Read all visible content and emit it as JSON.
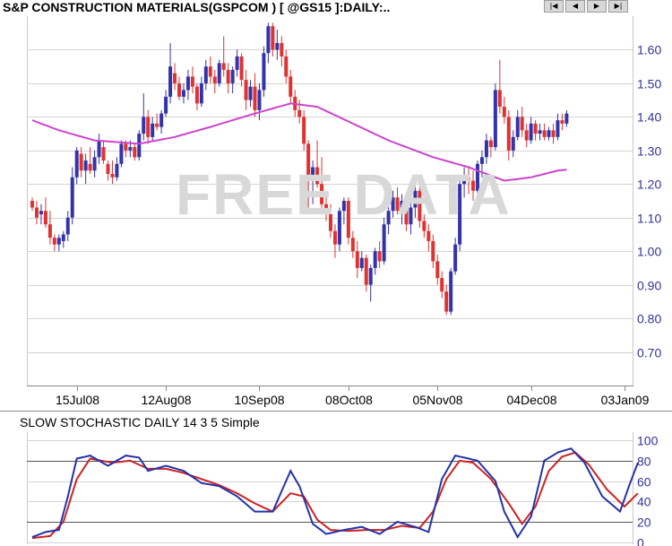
{
  "header": {
    "title": "S&P CONSTRUCTION MATERIALS(GSPCOM ) [ @GS15 ]:DAILY:..",
    "nav": [
      {
        "name": "nav-first-button",
        "glyph": "|◀"
      },
      {
        "name": "nav-prev-button",
        "glyph": "◀"
      },
      {
        "name": "nav-next-button",
        "glyph": "▶"
      },
      {
        "name": "nav-last-button",
        "glyph": "▶|"
      }
    ]
  },
  "watermark": "FREE DATA",
  "colors": {
    "up": "#3333aa",
    "down": "#dd3333",
    "ma": "#cc44cc",
    "stoch_k": "#2233aa",
    "stoch_d": "#cc2222",
    "axis_text": "#333399",
    "grid": "#555555"
  },
  "chart_data": [
    {
      "type": "candlestick",
      "title": "S&P CONSTRUCTION MATERIALS(GSPCOM ) [ @GS15 ]:DAILY:..",
      "ylim": [
        0.6,
        1.7
      ],
      "yticks": [
        "0.70",
        "0.80",
        "0.90",
        "1.00",
        "1.10",
        "1.20",
        "1.30",
        "1.40",
        "1.50",
        "1.60"
      ],
      "xticks": [
        {
          "label": "15Jul08",
          "index": 10
        },
        {
          "label": "12Aug08",
          "index": 30
        },
        {
          "label": "10Sep08",
          "index": 51
        },
        {
          "label": "08Oct08",
          "index": 71
        },
        {
          "label": "05Nov08",
          "index": 91
        },
        {
          "label": "04Dec08",
          "index": 112
        },
        {
          "label": "03Jan09",
          "index": 133
        }
      ],
      "ohlc": [
        [
          1.15,
          1.16,
          1.12,
          1.13
        ],
        [
          1.13,
          1.15,
          1.08,
          1.1
        ],
        [
          1.11,
          1.14,
          1.08,
          1.12
        ],
        [
          1.12,
          1.16,
          1.07,
          1.08
        ],
        [
          1.08,
          1.12,
          1.02,
          1.04
        ],
        [
          1.04,
          1.05,
          1.0,
          1.02
        ],
        [
          1.02,
          1.05,
          1.0,
          1.04
        ],
        [
          1.03,
          1.06,
          1.01,
          1.05
        ],
        [
          1.05,
          1.12,
          1.03,
          1.1
        ],
        [
          1.1,
          1.25,
          1.08,
          1.22
        ],
        [
          1.22,
          1.31,
          1.2,
          1.3
        ],
        [
          1.29,
          1.31,
          1.22,
          1.24
        ],
        [
          1.24,
          1.29,
          1.2,
          1.27
        ],
        [
          1.26,
          1.31,
          1.23,
          1.24
        ],
        [
          1.24,
          1.3,
          1.22,
          1.28
        ],
        [
          1.28,
          1.35,
          1.26,
          1.33
        ],
        [
          1.31,
          1.33,
          1.26,
          1.27
        ],
        [
          1.26,
          1.27,
          1.21,
          1.23
        ],
        [
          1.23,
          1.27,
          1.2,
          1.22
        ],
        [
          1.22,
          1.28,
          1.21,
          1.26
        ],
        [
          1.26,
          1.33,
          1.25,
          1.32
        ],
        [
          1.32,
          1.33,
          1.28,
          1.3
        ],
        [
          1.3,
          1.33,
          1.28,
          1.31
        ],
        [
          1.31,
          1.32,
          1.27,
          1.28
        ],
        [
          1.28,
          1.36,
          1.27,
          1.35
        ],
        [
          1.35,
          1.47,
          1.33,
          1.4
        ],
        [
          1.4,
          1.42,
          1.32,
          1.34
        ],
        [
          1.34,
          1.4,
          1.33,
          1.38
        ],
        [
          1.38,
          1.41,
          1.36,
          1.37
        ],
        [
          1.37,
          1.42,
          1.35,
          1.41
        ],
        [
          1.41,
          1.48,
          1.4,
          1.46
        ],
        [
          1.46,
          1.62,
          1.44,
          1.55
        ],
        [
          1.53,
          1.56,
          1.48,
          1.5
        ],
        [
          1.5,
          1.52,
          1.45,
          1.46
        ],
        [
          1.46,
          1.5,
          1.44,
          1.48
        ],
        [
          1.48,
          1.54,
          1.45,
          1.52
        ],
        [
          1.52,
          1.55,
          1.47,
          1.49
        ],
        [
          1.49,
          1.5,
          1.42,
          1.44
        ],
        [
          1.44,
          1.52,
          1.43,
          1.5
        ],
        [
          1.5,
          1.57,
          1.48,
          1.55
        ],
        [
          1.55,
          1.58,
          1.5,
          1.52
        ],
        [
          1.52,
          1.54,
          1.47,
          1.5
        ],
        [
          1.5,
          1.57,
          1.49,
          1.56
        ],
        [
          1.56,
          1.64,
          1.52,
          1.54
        ],
        [
          1.54,
          1.56,
          1.47,
          1.5
        ],
        [
          1.5,
          1.55,
          1.47,
          1.54
        ],
        [
          1.54,
          1.6,
          1.52,
          1.58
        ],
        [
          1.58,
          1.59,
          1.49,
          1.51
        ],
        [
          1.51,
          1.54,
          1.42,
          1.45
        ],
        [
          1.45,
          1.51,
          1.43,
          1.49
        ],
        [
          1.49,
          1.53,
          1.4,
          1.42
        ],
        [
          1.42,
          1.5,
          1.39,
          1.48
        ],
        [
          1.48,
          1.61,
          1.46,
          1.59
        ],
        [
          1.59,
          1.68,
          1.56,
          1.67
        ],
        [
          1.67,
          1.68,
          1.58,
          1.6
        ],
        [
          1.6,
          1.66,
          1.57,
          1.62
        ],
        [
          1.62,
          1.64,
          1.55,
          1.58
        ],
        [
          1.58,
          1.6,
          1.5,
          1.52
        ],
        [
          1.52,
          1.54,
          1.44,
          1.46
        ],
        [
          1.46,
          1.48,
          1.4,
          1.42
        ],
        [
          1.42,
          1.45,
          1.38,
          1.4
        ],
        [
          1.4,
          1.42,
          1.3,
          1.32
        ],
        [
          1.32,
          1.33,
          1.13,
          1.22
        ],
        [
          1.22,
          1.27,
          1.14,
          1.25
        ],
        [
          1.25,
          1.33,
          1.19,
          1.2
        ],
        [
          1.2,
          1.28,
          1.12,
          1.14
        ],
        [
          1.14,
          1.18,
          1.09,
          1.11
        ],
        [
          1.11,
          1.14,
          1.04,
          1.06
        ],
        [
          1.06,
          1.08,
          0.98,
          1.02
        ],
        [
          1.02,
          1.13,
          1.0,
          1.12
        ],
        [
          1.12,
          1.16,
          1.08,
          1.15
        ],
        [
          1.15,
          1.16,
          1.02,
          1.04
        ],
        [
          1.04,
          1.06,
          0.98,
          1.0
        ],
        [
          1.0,
          1.03,
          0.92,
          0.95
        ],
        [
          0.95,
          1.0,
          0.94,
          0.98
        ],
        [
          0.98,
          0.99,
          0.88,
          0.9
        ],
        [
          0.9,
          0.96,
          0.85,
          0.95
        ],
        [
          0.95,
          1.01,
          0.93,
          1.0
        ],
        [
          1.0,
          1.03,
          0.95,
          0.97
        ],
        [
          0.97,
          1.1,
          0.96,
          1.08
        ],
        [
          1.08,
          1.14,
          1.05,
          1.12
        ],
        [
          1.12,
          1.18,
          1.1,
          1.16
        ],
        [
          1.16,
          1.19,
          1.11,
          1.12
        ],
        [
          1.12,
          1.17,
          1.08,
          1.15
        ],
        [
          1.15,
          1.16,
          1.06,
          1.08
        ],
        [
          1.08,
          1.15,
          1.05,
          1.13
        ],
        [
          1.13,
          1.2,
          1.1,
          1.18
        ],
        [
          1.18,
          1.2,
          1.07,
          1.09
        ],
        [
          1.09,
          1.11,
          1.04,
          1.06
        ],
        [
          1.06,
          1.08,
          1.0,
          1.03
        ],
        [
          1.03,
          1.05,
          0.95,
          0.97
        ],
        [
          0.97,
          0.99,
          0.9,
          0.92
        ],
        [
          0.92,
          0.94,
          0.86,
          0.88
        ],
        [
          0.88,
          0.9,
          0.81,
          0.82
        ],
        [
          0.82,
          0.95,
          0.81,
          0.94
        ],
        [
          0.94,
          1.04,
          0.93,
          1.02
        ],
        [
          1.02,
          1.22,
          1.0,
          1.2
        ],
        [
          1.2,
          1.25,
          1.16,
          1.22
        ],
        [
          1.22,
          1.25,
          1.17,
          1.21
        ],
        [
          1.21,
          1.24,
          1.15,
          1.18
        ],
        [
          1.18,
          1.27,
          1.17,
          1.26
        ],
        [
          1.26,
          1.3,
          1.22,
          1.28
        ],
        [
          1.28,
          1.35,
          1.26,
          1.33
        ],
        [
          1.33,
          1.34,
          1.28,
          1.31
        ],
        [
          1.31,
          1.5,
          1.3,
          1.48
        ],
        [
          1.48,
          1.57,
          1.41,
          1.43
        ],
        [
          1.43,
          1.46,
          1.38,
          1.4
        ],
        [
          1.4,
          1.42,
          1.27,
          1.3
        ],
        [
          1.3,
          1.36,
          1.28,
          1.34
        ],
        [
          1.34,
          1.42,
          1.33,
          1.4
        ],
        [
          1.4,
          1.43,
          1.34,
          1.36
        ],
        [
          1.36,
          1.38,
          1.31,
          1.33
        ],
        [
          1.33,
          1.4,
          1.32,
          1.38
        ],
        [
          1.38,
          1.39,
          1.33,
          1.35
        ],
        [
          1.35,
          1.38,
          1.33,
          1.36
        ],
        [
          1.36,
          1.38,
          1.33,
          1.34
        ],
        [
          1.34,
          1.37,
          1.33,
          1.36
        ],
        [
          1.36,
          1.38,
          1.32,
          1.34
        ],
        [
          1.34,
          1.41,
          1.33,
          1.39
        ],
        [
          1.39,
          1.41,
          1.36,
          1.38
        ],
        [
          1.38,
          1.42,
          1.37,
          1.41
        ]
      ],
      "ma_anchors": [
        [
          0,
          1.39
        ],
        [
          6,
          1.36
        ],
        [
          14,
          1.33
        ],
        [
          24,
          1.32
        ],
        [
          32,
          1.34
        ],
        [
          40,
          1.37
        ],
        [
          50,
          1.41
        ],
        [
          58,
          1.44
        ],
        [
          64,
          1.43
        ],
        [
          72,
          1.38
        ],
        [
          80,
          1.33
        ],
        [
          90,
          1.28
        ],
        [
          98,
          1.25
        ],
        [
          106,
          1.21
        ],
        [
          112,
          1.22
        ],
        [
          118,
          1.24
        ],
        [
          125,
          1.25
        ],
        [
          133,
          1.27
        ]
      ]
    },
    {
      "type": "line",
      "title": "SLOW STOCHASTIC DAILY 14 3 5 Simple",
      "ylim": [
        -2,
        108
      ],
      "yticks": [
        "0",
        "20",
        "40",
        "60",
        "80",
        "100"
      ],
      "hlines": [
        20,
        80
      ],
      "series": [
        {
          "key": "k",
          "anchors": [
            [
              0,
              5
            ],
            [
              3,
              10
            ],
            [
              6,
              12
            ],
            [
              8,
              45
            ],
            [
              10,
              82
            ],
            [
              13,
              85
            ],
            [
              17,
              75
            ],
            [
              21,
              85
            ],
            [
              24,
              83
            ],
            [
              26,
              70
            ],
            [
              30,
              75
            ],
            [
              34,
              70
            ],
            [
              38,
              58
            ],
            [
              42,
              55
            ],
            [
              46,
              45
            ],
            [
              50,
              30
            ],
            [
              54,
              30
            ],
            [
              58,
              70
            ],
            [
              60,
              55
            ],
            [
              63,
              18
            ],
            [
              66,
              8
            ],
            [
              70,
              12
            ],
            [
              74,
              15
            ],
            [
              78,
              8
            ],
            [
              82,
              20
            ],
            [
              86,
              15
            ],
            [
              89,
              10
            ],
            [
              92,
              62
            ],
            [
              95,
              85
            ],
            [
              97,
              83
            ],
            [
              100,
              80
            ],
            [
              104,
              60
            ],
            [
              106,
              30
            ],
            [
              109,
              5
            ],
            [
              112,
              25
            ],
            [
              115,
              80
            ],
            [
              118,
              88
            ],
            [
              121,
              92
            ],
            [
              124,
              78
            ],
            [
              128,
              45
            ],
            [
              132,
              30
            ],
            [
              134,
              55
            ],
            [
              136,
              78
            ]
          ]
        },
        {
          "key": "d",
          "anchors": [
            [
              0,
              4
            ],
            [
              4,
              6
            ],
            [
              7,
              20
            ],
            [
              10,
              62
            ],
            [
              13,
              82
            ],
            [
              18,
              78
            ],
            [
              22,
              80
            ],
            [
              26,
              72
            ],
            [
              30,
              72
            ],
            [
              34,
              68
            ],
            [
              38,
              62
            ],
            [
              42,
              56
            ],
            [
              46,
              48
            ],
            [
              50,
              38
            ],
            [
              54,
              30
            ],
            [
              58,
              48
            ],
            [
              61,
              45
            ],
            [
              64,
              22
            ],
            [
              67,
              12
            ],
            [
              71,
              11
            ],
            [
              75,
              12
            ],
            [
              79,
              12
            ],
            [
              83,
              16
            ],
            [
              87,
              14
            ],
            [
              90,
              30
            ],
            [
              93,
              62
            ],
            [
              96,
              80
            ],
            [
              99,
              78
            ],
            [
              103,
              62
            ],
            [
              107,
              38
            ],
            [
              110,
              18
            ],
            [
              113,
              35
            ],
            [
              116,
              70
            ],
            [
              119,
              84
            ],
            [
              122,
              88
            ],
            [
              125,
              76
            ],
            [
              129,
              52
            ],
            [
              133,
              35
            ],
            [
              136,
              48
            ]
          ]
        }
      ]
    }
  ]
}
